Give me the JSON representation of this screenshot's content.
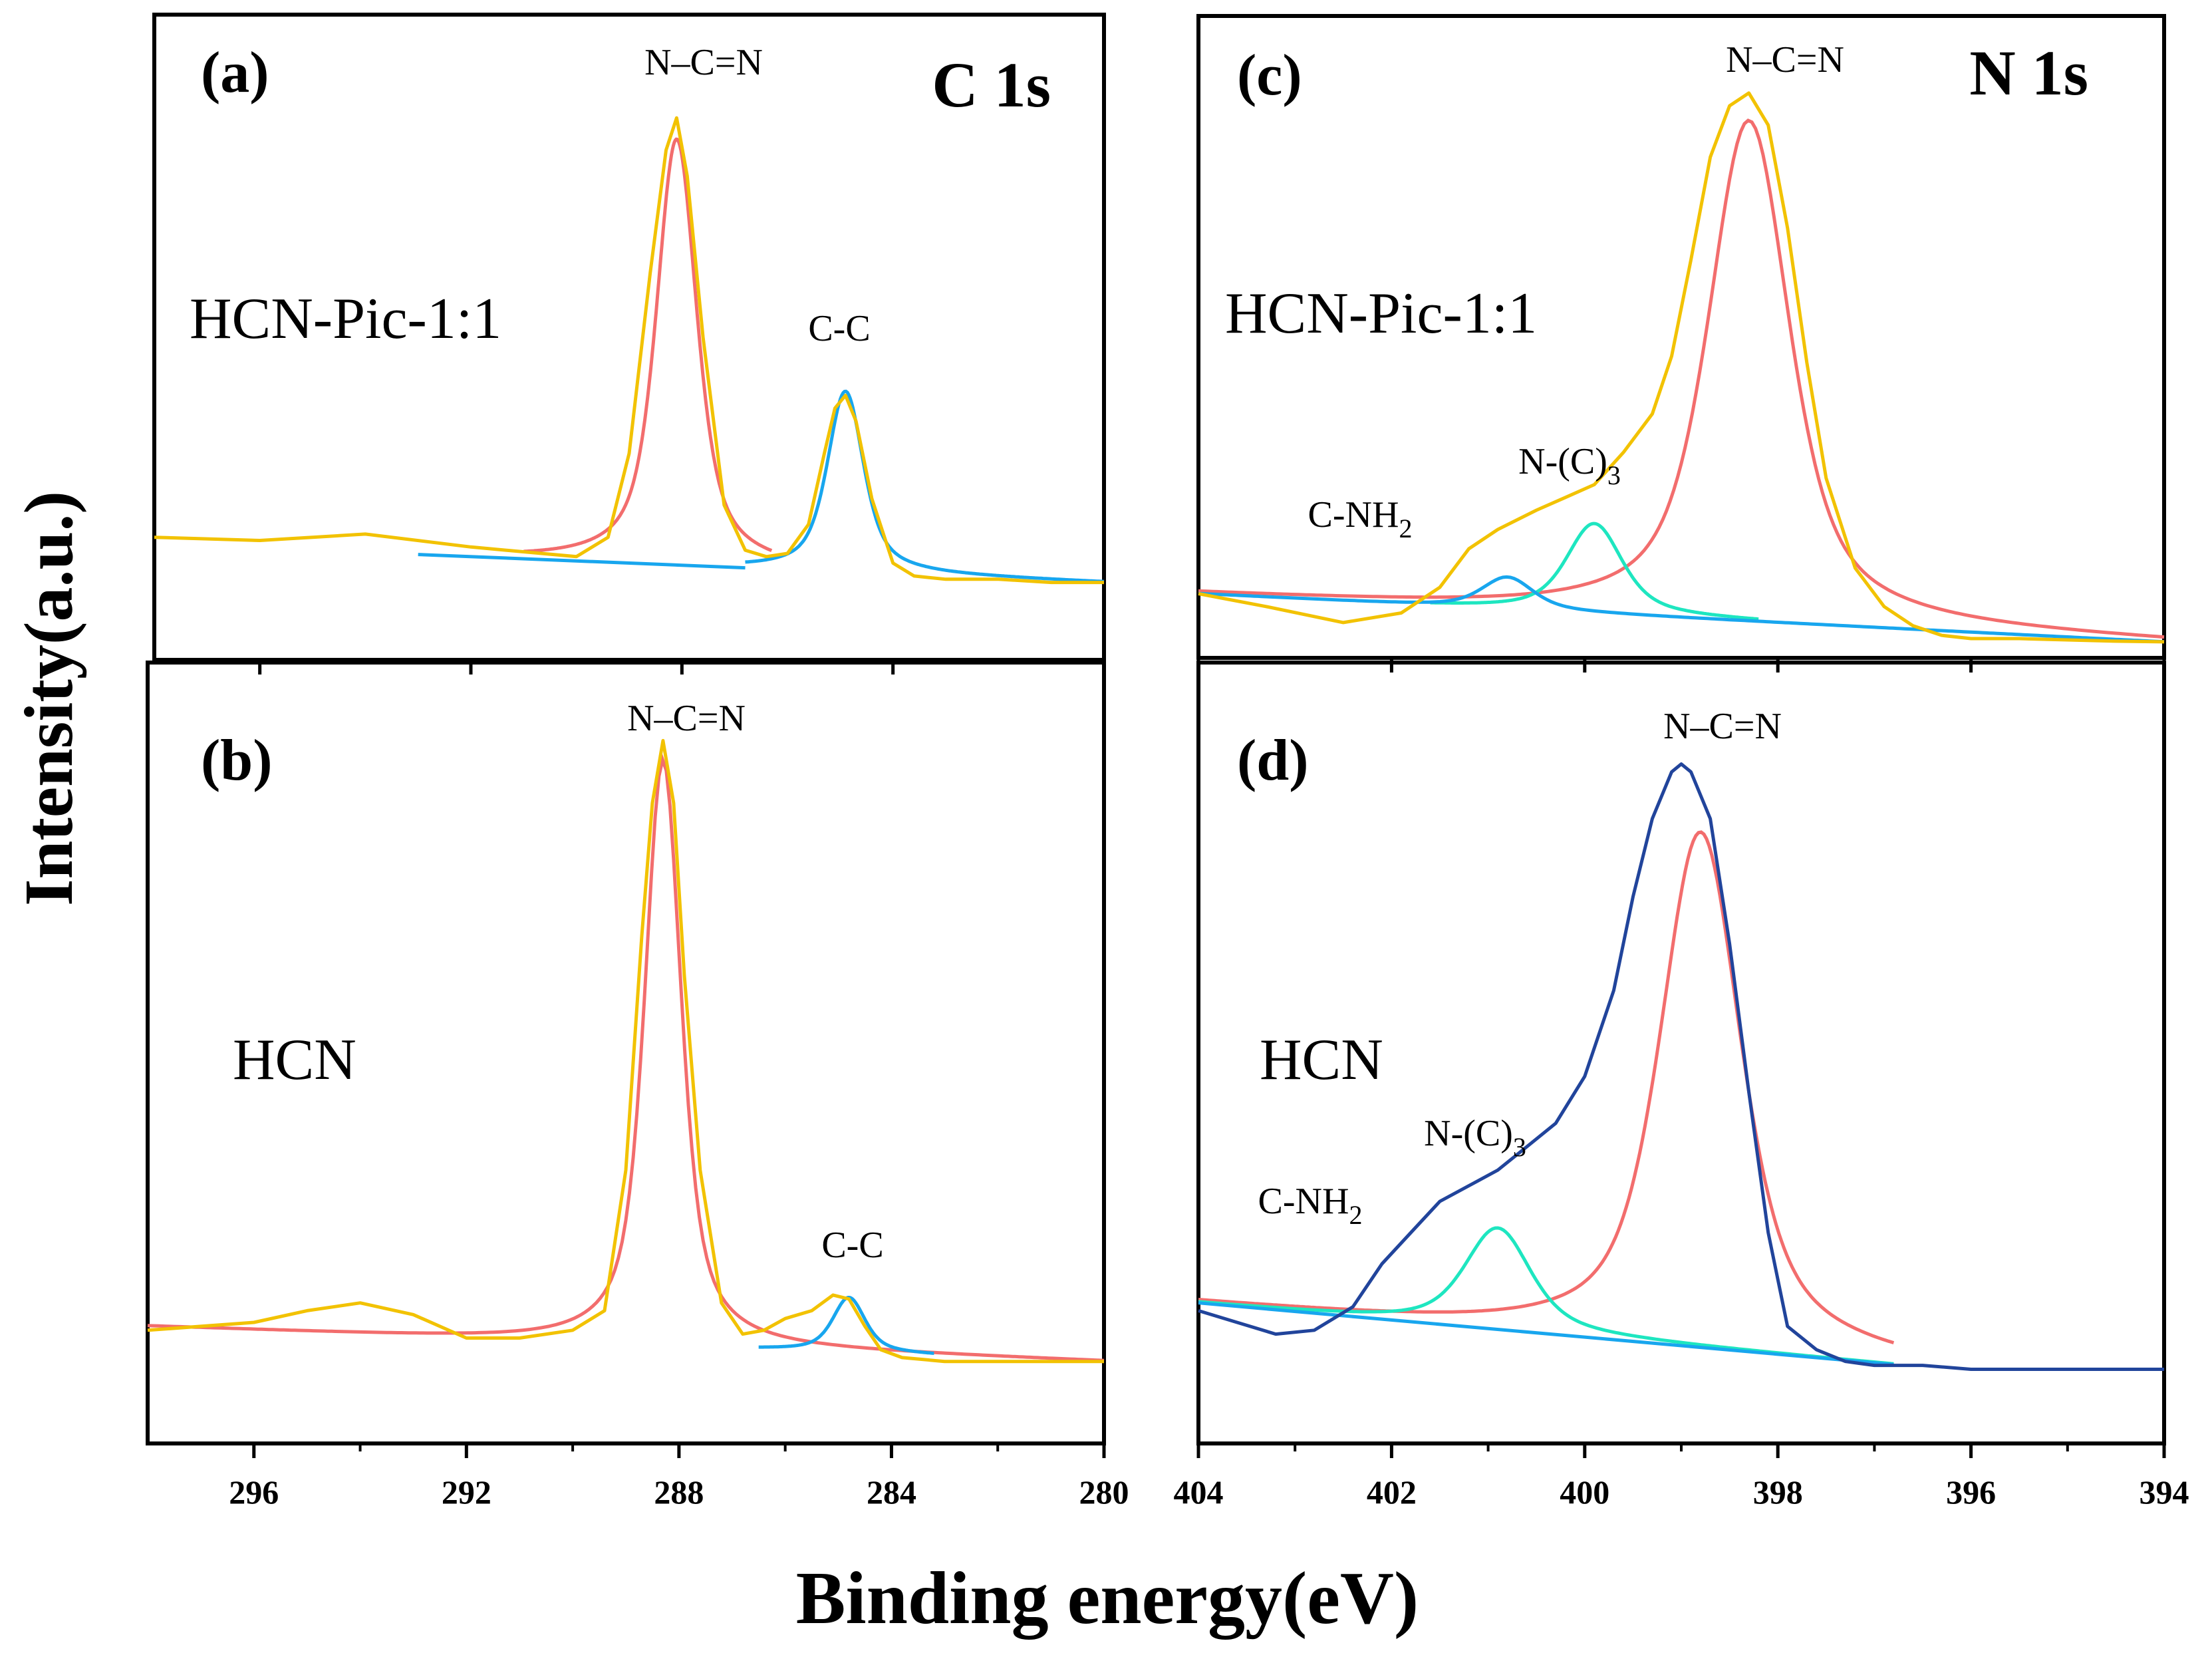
{
  "figure": {
    "y_axis_label": "Intensity(a.u.)",
    "x_axis_label": "Binding energy(eV)"
  },
  "chart_data": [
    {
      "id": "a",
      "type": "line",
      "panel_label": "(a)",
      "spectrum": "C 1s",
      "sample": "HCN-Pic-1:1",
      "xlabel": "Binding energy(eV)",
      "ylabel": "Intensity(a.u.)",
      "xlim": [
        298,
        280
      ],
      "xticks": [
        296,
        292,
        288,
        284,
        280
      ],
      "show_tick_labels": false,
      "ylim": [
        0,
        1
      ],
      "peaks": [
        {
          "label": "N–C=N",
          "center": 288.1,
          "amplitude": 0.66,
          "width": 0.5,
          "color": "#f26d6d"
        },
        {
          "label": "C-C",
          "center": 284.9,
          "amplitude": 0.28,
          "width": 0.45,
          "color": "#18a6ee"
        }
      ],
      "baseline": {
        "x": [
          298,
          280
        ],
        "y": [
          0.18,
          0.12
        ]
      },
      "series": [
        {
          "name": "Raw",
          "color": "#f2c200",
          "x": [
            298,
            296,
            294,
            292,
            290,
            289.4,
            289,
            288.6,
            288.3,
            288.1,
            287.9,
            287.6,
            287.2,
            286.8,
            286.4,
            286,
            285.6,
            285.3,
            285.1,
            284.9,
            284.7,
            284.4,
            284,
            283.6,
            283,
            282,
            281,
            280
          ],
          "y": [
            0.19,
            0.185,
            0.195,
            0.175,
            0.16,
            0.19,
            0.32,
            0.6,
            0.79,
            0.84,
            0.75,
            0.5,
            0.24,
            0.17,
            0.16,
            0.165,
            0.21,
            0.32,
            0.39,
            0.41,
            0.37,
            0.25,
            0.15,
            0.13,
            0.125,
            0.125,
            0.12,
            0.12
          ]
        },
        {
          "name": "N–C=N fit",
          "color": "#f26d6d",
          "x_range": [
            291,
            286.3
          ]
        },
        {
          "name": "C-C fit",
          "color": "#18a6ee",
          "x_range": [
            286.8,
            280
          ]
        },
        {
          "name": "Background",
          "color": "#18a6ee",
          "x_range": [
            293,
            286.8
          ]
        }
      ]
    },
    {
      "id": "b",
      "type": "line",
      "panel_label": "(b)",
      "spectrum": "",
      "sample": "HCN",
      "xlabel": "Binding energy(eV)",
      "ylabel": "Intensity(a.u.)",
      "xlim": [
        298,
        280
      ],
      "xticks": [
        296,
        292,
        288,
        284,
        280
      ],
      "show_tick_labels": true,
      "ylim": [
        0,
        1
      ],
      "peaks": [
        {
          "label": "N–C=N",
          "center": 288.3,
          "amplitude": 0.75,
          "width": 0.45,
          "color": "#f26d6d"
        },
        {
          "label": "C-C",
          "center": 284.8,
          "amplitude": 0.07,
          "width": 0.4,
          "color": "#18a6ee"
        }
      ],
      "baseline": {
        "x": [
          298,
          280
        ],
        "y": [
          0.15,
          0.105
        ]
      },
      "series": [
        {
          "name": "Raw",
          "color": "#f2c200",
          "x": [
            298,
            296,
            295,
            294,
            293,
            292,
            291,
            290,
            289.4,
            289,
            288.7,
            288.5,
            288.3,
            288.1,
            287.9,
            287.6,
            287.2,
            286.8,
            286.4,
            286,
            285.5,
            285.1,
            284.8,
            284.5,
            284.2,
            283.8,
            283,
            282,
            281,
            280
          ],
          "y": [
            0.145,
            0.155,
            0.17,
            0.18,
            0.165,
            0.135,
            0.135,
            0.145,
            0.17,
            0.35,
            0.65,
            0.82,
            0.9,
            0.82,
            0.6,
            0.35,
            0.18,
            0.14,
            0.145,
            0.16,
            0.17,
            0.19,
            0.185,
            0.15,
            0.12,
            0.11,
            0.105,
            0.105,
            0.105,
            0.105
          ]
        },
        {
          "name": "N–C=N fit",
          "color": "#f26d6d",
          "x_range": [
            298,
            280
          ]
        },
        {
          "name": "C-C fit",
          "color": "#18a6ee",
          "x_range": [
            286.5,
            283.2
          ]
        }
      ]
    },
    {
      "id": "c",
      "type": "line",
      "panel_label": "(c)",
      "spectrum": "N 1s",
      "sample": "HCN-Pic-1:1",
      "xlabel": "Binding energy(eV)",
      "ylabel": "Intensity(a.u.)",
      "xlim": [
        404,
        394
      ],
      "xticks": [
        404,
        402,
        400,
        398,
        396,
        394
      ],
      "show_tick_labels": false,
      "ylim": [
        0,
        1
      ],
      "peaks": [
        {
          "label": "N–C=N",
          "center": 398.3,
          "amplitude": 0.78,
          "width": 0.55,
          "color": "#f26d6d"
        },
        {
          "label": "N-(C)3",
          "center": 399.9,
          "amplitude": 0.14,
          "width": 0.38,
          "color": "#1ee6c0"
        },
        {
          "label": "C-NH2",
          "center": 400.8,
          "amplitude": 0.05,
          "width": 0.35,
          "color": "#18a6ee"
        }
      ],
      "baseline": {
        "x": [
          404,
          394
        ],
        "y": [
          0.1,
          0.025
        ]
      },
      "series": [
        {
          "name": "Raw",
          "color": "#f2c200",
          "x": [
            404,
            403.3,
            402.5,
            401.9,
            401.5,
            401.2,
            400.9,
            400.5,
            400.2,
            399.9,
            399.6,
            399.3,
            399.1,
            398.9,
            398.7,
            398.5,
            398.3,
            398.1,
            397.9,
            397.7,
            397.5,
            397.2,
            396.9,
            396.6,
            396.3,
            396,
            395.5,
            395,
            394.5,
            394
          ],
          "y": [
            0.1,
            0.08,
            0.055,
            0.07,
            0.11,
            0.17,
            0.2,
            0.23,
            0.25,
            0.27,
            0.32,
            0.38,
            0.47,
            0.62,
            0.78,
            0.86,
            0.88,
            0.83,
            0.67,
            0.46,
            0.28,
            0.14,
            0.08,
            0.05,
            0.035,
            0.03,
            0.03,
            0.028,
            0.026,
            0.025
          ]
        },
        {
          "name": "N–C=N fit",
          "color": "#f26d6d",
          "x_range": [
            404,
            394
          ]
        },
        {
          "name": "N-(C)3 fit",
          "color": "#1ee6c0",
          "x_range": [
            401.6,
            398.2
          ]
        },
        {
          "name": "C-NH2 fit",
          "color": "#18a6ee",
          "x_range": [
            404,
            394
          ]
        }
      ]
    },
    {
      "id": "d",
      "type": "line",
      "panel_label": "(d)",
      "spectrum": "",
      "sample": "HCN",
      "xlabel": "Binding energy(eV)",
      "ylabel": "Intensity(a.u.)",
      "xlim": [
        404,
        394
      ],
      "xticks": [
        404,
        402,
        400,
        398,
        396,
        394
      ],
      "show_tick_labels": true,
      "ylim": [
        0,
        1
      ],
      "peaks": [
        {
          "label": "N–C=N",
          "center": 398.8,
          "amplitude": 0.66,
          "width": 0.55,
          "color": "#f26d6d"
        },
        {
          "label": "N-(C)3",
          "center": 400.9,
          "amplitude": 0.13,
          "width": 0.45,
          "color": "#1ee6c0"
        }
      ],
      "baseline": {
        "x": [
          404,
          396.7
        ],
        "y": [
          0.18,
          0.1
        ]
      },
      "series": [
        {
          "name": "Raw",
          "color": "#21449b",
          "x": [
            404,
            403.6,
            403.2,
            402.8,
            402.4,
            402.1,
            401.8,
            401.5,
            401.2,
            400.9,
            400.6,
            400.3,
            400,
            399.7,
            399.5,
            399.3,
            399.1,
            399,
            398.9,
            398.7,
            398.5,
            398.3,
            398.1,
            397.9,
            397.6,
            397.3,
            397,
            396.5,
            396,
            395,
            394
          ],
          "y": [
            0.17,
            0.155,
            0.14,
            0.145,
            0.175,
            0.23,
            0.27,
            0.31,
            0.33,
            0.35,
            0.38,
            0.41,
            0.47,
            0.58,
            0.7,
            0.8,
            0.86,
            0.87,
            0.86,
            0.8,
            0.64,
            0.45,
            0.27,
            0.15,
            0.12,
            0.105,
            0.1,
            0.1,
            0.095,
            0.095,
            0.095
          ]
        },
        {
          "name": "N–C=N fit",
          "color": "#f26d6d",
          "x_range": [
            404,
            396.8
          ]
        },
        {
          "name": "N-(C)3 fit",
          "color": "#1ee6c0",
          "x_range": [
            404,
            396.8
          ]
        },
        {
          "name": "Background",
          "color": "#18a6ee",
          "x_range": [
            404,
            396.8
          ]
        }
      ]
    }
  ]
}
